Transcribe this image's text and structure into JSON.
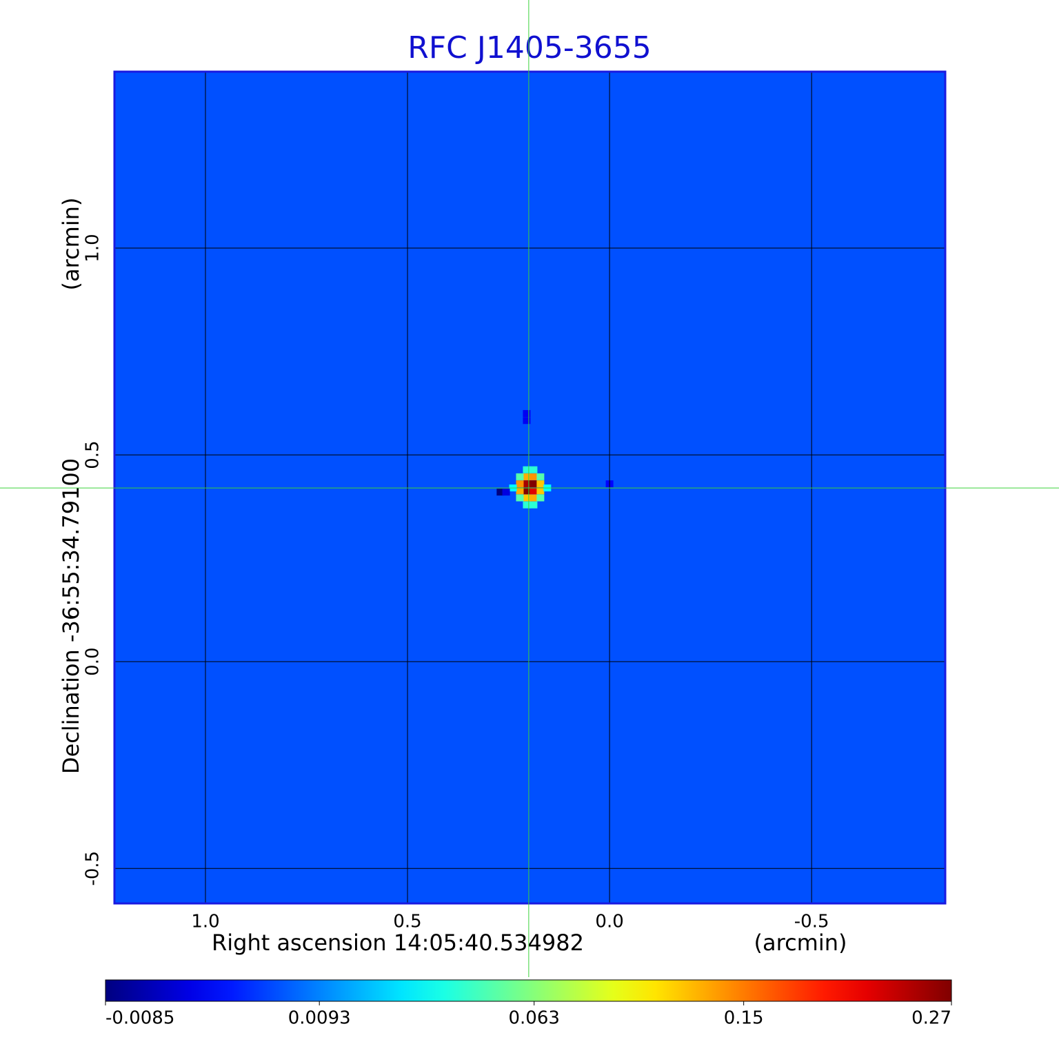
{
  "chart_data": {
    "type": "image",
    "title": "RFC J1405-3655",
    "x_label": "Right ascension  14:05:40.534982",
    "x_unit": "(arcmin)",
    "y_label": "Declination  -36:55:34.79100",
    "y_unit": "(arcmin)",
    "xlim": [
      1.2235,
      -0.829
    ],
    "ylim": [
      -0.583,
      1.425
    ],
    "xticks": [
      {
        "value": 1,
        "label": "1.0"
      },
      0.5,
      {
        "value": 0,
        "label": "0.0"
      },
      -0.5
    ],
    "yticks": [
      -0.5,
      {
        "value": 0,
        "label": "0.0"
      },
      0.5,
      {
        "value": 1,
        "label": "1.0"
      }
    ],
    "grid": true,
    "crosshair": {
      "x": 0.2,
      "y": 0.42
    },
    "colormap": "jet",
    "colorbar_scale": "sqrt",
    "clim": [
      -0.0085,
      0.27
    ],
    "cticks": [
      -0.0085,
      0.0093,
      0.063,
      0.15,
      0.27
    ],
    "background_value": 0.003,
    "pixels": [
      {
        "x": 0.205,
        "y": 0.43,
        "value": 0.25
      },
      {
        "x": 0.188,
        "y": 0.43,
        "value": 0.27
      },
      {
        "x": 0.205,
        "y": 0.413,
        "value": 0.27
      },
      {
        "x": 0.188,
        "y": 0.413,
        "value": 0.22
      },
      {
        "x": 0.222,
        "y": 0.43,
        "value": 0.14
      },
      {
        "x": 0.222,
        "y": 0.413,
        "value": 0.13
      },
      {
        "x": 0.171,
        "y": 0.43,
        "value": 0.12
      },
      {
        "x": 0.171,
        "y": 0.413,
        "value": 0.12
      },
      {
        "x": 0.205,
        "y": 0.447,
        "value": 0.13
      },
      {
        "x": 0.188,
        "y": 0.447,
        "value": 0.14
      },
      {
        "x": 0.205,
        "y": 0.396,
        "value": 0.12
      },
      {
        "x": 0.188,
        "y": 0.396,
        "value": 0.13
      },
      {
        "x": 0.222,
        "y": 0.447,
        "value": 0.05
      },
      {
        "x": 0.171,
        "y": 0.447,
        "value": 0.05
      },
      {
        "x": 0.222,
        "y": 0.396,
        "value": 0.05
      },
      {
        "x": 0.171,
        "y": 0.396,
        "value": 0.05
      },
      {
        "x": 0.205,
        "y": 0.464,
        "value": 0.04
      },
      {
        "x": 0.188,
        "y": 0.464,
        "value": 0.04
      },
      {
        "x": 0.205,
        "y": 0.379,
        "value": 0.04
      },
      {
        "x": 0.188,
        "y": 0.379,
        "value": 0.04
      },
      {
        "x": 0.239,
        "y": 0.42,
        "value": 0.03
      },
      {
        "x": 0.154,
        "y": 0.42,
        "value": 0.03
      },
      {
        "x": 0.27,
        "y": 0.41,
        "value": -0.0085
      },
      {
        "x": 0.256,
        "y": 0.41,
        "value": -0.006
      },
      {
        "x": 0.205,
        "y": 0.6,
        "value": -0.005
      },
      {
        "x": 0.205,
        "y": 0.583,
        "value": -0.005
      },
      {
        "x": 0.0,
        "y": 0.43,
        "value": -0.004
      }
    ]
  }
}
